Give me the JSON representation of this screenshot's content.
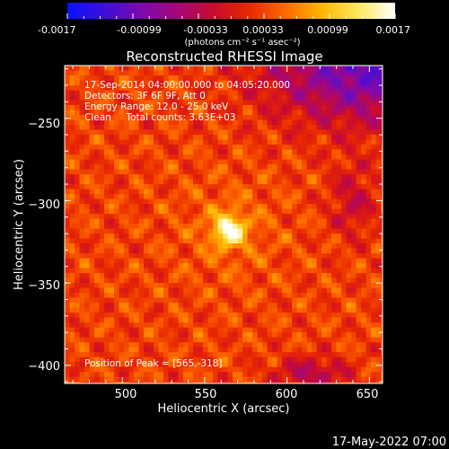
{
  "colorbar": {
    "min_label": "-0.0017",
    "tick_labels": [
      "-0.0017",
      "-0.00099",
      "-0.00033",
      "0.00033",
      "0.00099",
      "0.0017"
    ],
    "unit_label": "(photons cm⁻² s⁻¹ asec⁻²)",
    "range": [
      -0.0017,
      0.0017
    ],
    "stops": [
      "#0a10ff",
      "#3a10d8",
      "#7a0ab0",
      "#a40878",
      "#c80a30",
      "#e82800",
      "#ff6a00",
      "#ffb800",
      "#ffe860",
      "#ffffff"
    ]
  },
  "chart_data": {
    "type": "heatmap",
    "title": "Reconstructed RHESSI Image",
    "xlabel": "Heliocentric X (arcsec)",
    "ylabel": "Heliocentric Y (arcsec)",
    "xlim": [
      465,
      658
    ],
    "ylim": [
      -411,
      -218
    ],
    "x_ticks": [
      500,
      550,
      600,
      650
    ],
    "y_ticks": [
      -250,
      -300,
      -350,
      -400
    ],
    "x_tick_labels": [
      "500",
      "550",
      "600",
      "650"
    ],
    "y_tick_labels": [
      "−250",
      "−300",
      "−350",
      "−400"
    ],
    "peak": {
      "x": 565,
      "y": -318,
      "value": 0.0017
    },
    "annotations": [
      "17-Sep-2014 04:00:00.000 to 04:05:20.000",
      "Detectors: 3F 6F 9F, Att 0",
      "Energy Range: 12.0 - 25.0 keV",
      "Clean     Total counts: 3.63E+03"
    ],
    "peak_label": "Position of Peak = [565,-318]",
    "grid": false
  },
  "footer": {
    "timestamp": "17-May-2022 07:00"
  }
}
